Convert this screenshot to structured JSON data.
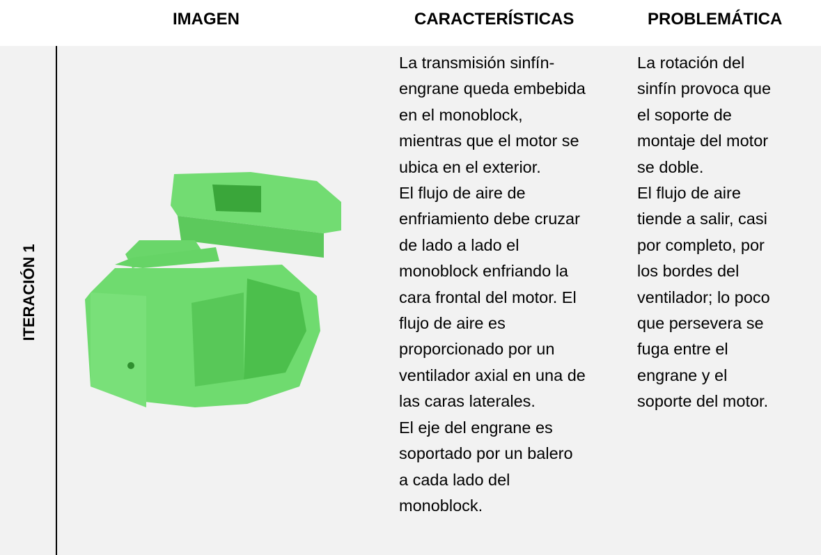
{
  "table": {
    "headers": [
      "IMAGEN",
      "CARACTERÍSTICAS",
      "PROBLEMÁTICA"
    ],
    "row_label": "ITERACIÓN 1",
    "characteristics_lines": [
      "La transmisión sinfín-",
      "engrane queda embebida",
      "en el monoblock,",
      "mientras que el motor se",
      "ubica en el exterior.",
      "El flujo de aire de",
      "enfriamiento debe cruzar",
      "de lado a lado el",
      "monoblock enfriando la",
      "cara frontal del motor. El",
      "flujo de aire es",
      "proporcionado por un",
      "ventilador axial en una de",
      "las caras laterales.",
      "El eje del engrane es",
      "soportado por un balero",
      "a cada lado del",
      "monoblock."
    ],
    "problems_lines": [
      "La rotación del",
      "sinfín provoca que",
      "el soporte de",
      "montaje del motor",
      "se doble.",
      "El flujo de aire",
      "tiende a salir, casi",
      "por completo, por",
      "los bordes del",
      "ventilador; lo poco",
      "que persevera se",
      "fuga entre el",
      "engrane y el",
      "soporte del motor."
    ]
  }
}
